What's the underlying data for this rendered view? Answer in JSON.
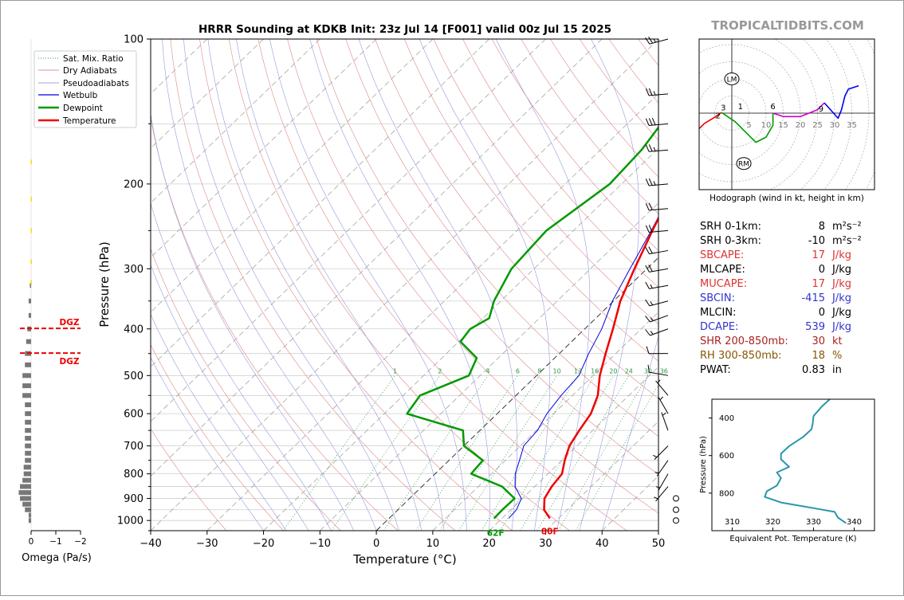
{
  "title": "HRRR Sounding at KDKB Init: 23z Jul 14 [F001] valid 00z Jul 15 2025",
  "watermark": "TROPICALTIDBITS.COM",
  "chart_data": {
    "type": "line",
    "skewt": {
      "xlabel": "Temperature (°C)",
      "ylabel": "Pressure (hPa)",
      "xlim": [
        -40,
        50
      ],
      "ylim": [
        1050,
        100
      ],
      "log_y": true,
      "x_ticks": [
        "−40",
        "−30",
        "−20",
        "−10",
        "0",
        "10",
        "20",
        "30",
        "40",
        "50"
      ],
      "y_ticks": [
        "100",
        "200",
        "300",
        "400",
        "500",
        "600",
        "700",
        "800",
        "900",
        "1000"
      ],
      "legend": [
        "Sat. Mix. Ratio",
        "Dry Adiabats",
        "Pseudoadiabats",
        "Wetbulb",
        "Dewpoint",
        "Temperature"
      ],
      "legend_position": "top-left",
      "mixing_ratio_labels": [
        "1",
        "2",
        "4",
        "6",
        "8",
        "10",
        "13",
        "16",
        "20",
        "24",
        "30",
        "36"
      ],
      "series": [
        {
          "name": "Temperature",
          "color": "#ee0000",
          "points": [
            [
              100,
              -0.2
            ],
            [
              130,
              -6.3
            ],
            [
              150,
              -8.4
            ],
            [
              170,
              -10.7
            ],
            [
              200,
              -10.4
            ],
            [
              250,
              -6
            ],
            [
              300,
              -2.2
            ],
            [
              350,
              1.2
            ],
            [
              400,
              5
            ],
            [
              450,
              8.2
            ],
            [
              500,
              11.2
            ],
            [
              550,
              14.5
            ],
            [
              600,
              16.6
            ],
            [
              650,
              17.6
            ],
            [
              700,
              18.7
            ],
            [
              750,
              20.5
            ],
            [
              800,
              22.5
            ],
            [
              850,
              23
            ],
            [
              900,
              23.9
            ],
            [
              950,
              25.9
            ],
            [
              990,
              28.5
            ]
          ]
        },
        {
          "name": "Dewpoint",
          "color": "#009900",
          "points": [
            [
              100,
              -16.3
            ],
            [
              130,
              -26
            ],
            [
              150,
              -24
            ],
            [
              170,
              -22.7
            ],
            [
              200,
              -22.1
            ],
            [
              250,
              -24.8
            ],
            [
              300,
              -24
            ],
            [
              350,
              -21.2
            ],
            [
              380,
              -18.9
            ],
            [
              400,
              -20.3
            ],
            [
              425,
              -19.7
            ],
            [
              460,
              -13.8
            ],
            [
              500,
              -12
            ],
            [
              550,
              -17
            ],
            [
              600,
              -16
            ],
            [
              650,
              -3
            ],
            [
              700,
              0
            ],
            [
              750,
              6
            ],
            [
              800,
              6.4
            ],
            [
              850,
              14.2
            ],
            [
              900,
              18.6
            ],
            [
              950,
              18.5
            ],
            [
              990,
              18.6
            ]
          ]
        },
        {
          "name": "Wetbulb",
          "color": "#0000dd",
          "points": [
            [
              200,
              -10.4
            ],
            [
              250,
              -6.2
            ],
            [
              300,
              -3
            ],
            [
              350,
              -0.2
            ],
            [
              400,
              3
            ],
            [
              450,
              5.2
            ],
            [
              500,
              7.5
            ],
            [
              550,
              8
            ],
            [
              600,
              8.8
            ],
            [
              650,
              10.2
            ],
            [
              700,
              10.6
            ],
            [
              750,
              12.5
            ],
            [
              800,
              14.2
            ],
            [
              850,
              16.5
            ],
            [
              900,
              19.8
            ],
            [
              950,
              21
            ],
            [
              990,
              21.2
            ]
          ]
        }
      ],
      "surface_labels": [
        {
          "text": "62F",
          "color": "#009900"
        },
        {
          "text": "80F",
          "color": "#ee0000"
        }
      ]
    },
    "omega": {
      "xlabel": "Omega (Pa/s)",
      "x_ticks": [
        "0",
        "−1",
        "−2"
      ],
      "dgz_labels": [
        "DGZ",
        "DGZ"
      ],
      "dgz_pressures": [
        399,
        449
      ],
      "bars": [
        [
          1000,
          0.02
        ],
        [
          975,
          0.02
        ],
        [
          950,
          0.05
        ],
        [
          925,
          0.07
        ],
        [
          900,
          0.09
        ],
        [
          875,
          0.1
        ],
        [
          850,
          0.09
        ],
        [
          825,
          0.07
        ],
        [
          800,
          0.06
        ],
        [
          775,
          0.06
        ],
        [
          750,
          0.05
        ],
        [
          725,
          0.05
        ],
        [
          700,
          0.05
        ],
        [
          675,
          0.05
        ],
        [
          650,
          0.05
        ],
        [
          625,
          0.05
        ],
        [
          600,
          0.05
        ],
        [
          575,
          0.05
        ],
        [
          550,
          0.07
        ],
        [
          525,
          0.07
        ],
        [
          500,
          0.07
        ],
        [
          475,
          0.05
        ],
        [
          450,
          0.05
        ],
        [
          425,
          0.04
        ],
        [
          400,
          0.03
        ],
        [
          375,
          0.02
        ],
        [
          350,
          0.02
        ],
        [
          325,
          0.01
        ]
      ]
    },
    "wind_barbs": [
      {
        "p": 100,
        "spd": 25,
        "dir": 255
      },
      {
        "p": 130,
        "spd": 25,
        "dir": 265
      },
      {
        "p": 150,
        "spd": 30,
        "dir": 265
      },
      {
        "p": 170,
        "spd": 25,
        "dir": 265
      },
      {
        "p": 200,
        "spd": 25,
        "dir": 265
      },
      {
        "p": 225,
        "spd": 20,
        "dir": 265
      },
      {
        "p": 250,
        "spd": 20,
        "dir": 265
      },
      {
        "p": 275,
        "spd": 20,
        "dir": 260
      },
      {
        "p": 300,
        "spd": 20,
        "dir": 260
      },
      {
        "p": 325,
        "spd": 15,
        "dir": 260
      },
      {
        "p": 350,
        "spd": 15,
        "dir": 255
      },
      {
        "p": 375,
        "spd": 15,
        "dir": 250
      },
      {
        "p": 400,
        "spd": 15,
        "dir": 250
      },
      {
        "p": 450,
        "spd": 10,
        "dir": 270
      },
      {
        "p": 500,
        "spd": 10,
        "dir": 280
      },
      {
        "p": 550,
        "spd": 5,
        "dir": 320
      },
      {
        "p": 600,
        "spd": 5,
        "dir": 330
      },
      {
        "p": 650,
        "spd": 5,
        "dir": 340
      },
      {
        "p": 700,
        "spd": 5,
        "dir": 225
      },
      {
        "p": 750,
        "spd": 5,
        "dir": 215
      },
      {
        "p": 800,
        "spd": 5,
        "dir": 210
      },
      {
        "p": 850,
        "spd": 5,
        "dir": 220
      },
      {
        "p": 900,
        "spd": 0,
        "dir": 0
      },
      {
        "p": 950,
        "spd": 0,
        "dir": 0
      },
      {
        "p": 1000,
        "spd": 0,
        "dir": 0
      }
    ],
    "hodograph": {
      "caption": "Hodograph (wind in kt, height in km)",
      "ring_labels": [
        "5",
        "10",
        "15",
        "20",
        "25",
        "30",
        "35"
      ],
      "height_labels": [
        "1",
        "2",
        "3",
        "6",
        "9"
      ],
      "storm_motion_labels": [
        "LM",
        "RM"
      ],
      "segments": [
        {
          "color": "#ee0000",
          "points": [
            [
              -10,
              -5
            ],
            [
              -8,
              -3
            ],
            [
              -5,
              -1.2
            ],
            [
              -3,
              0.2
            ]
          ]
        },
        {
          "color": "#009900",
          "points": [
            [
              -3,
              0.2
            ],
            [
              1,
              -2.5
            ],
            [
              4,
              -5.5
            ],
            [
              7,
              -8.5
            ],
            [
              10,
              -7
            ],
            [
              12,
              -3.5
            ],
            [
              12,
              0
            ]
          ]
        },
        {
          "color": "#cc00cc",
          "points": [
            [
              12,
              0
            ],
            [
              15,
              -1
            ],
            [
              20,
              -1
            ],
            [
              25,
              1
            ],
            [
              27,
              3
            ]
          ]
        },
        {
          "color": "#0000ee",
          "points": [
            [
              27,
              3
            ],
            [
              31,
              -1.5
            ],
            [
              32,
              1
            ],
            [
              33,
              5
            ],
            [
              34,
              7
            ],
            [
              37,
              8
            ]
          ]
        }
      ]
    },
    "theta_e": {
      "xlabel": "Equivalent Pot. Temperature (K)",
      "ylabel": "Pressure (hPa)",
      "x_ticks": [
        "310",
        "320",
        "330",
        "340"
      ],
      "y_ticks": [
        "400",
        "600",
        "800"
      ],
      "color": "#2a96aa",
      "points": [
        [
          300,
          334
        ],
        [
          340,
          332
        ],
        [
          390,
          330
        ],
        [
          430,
          329.8
        ],
        [
          460,
          329.5
        ],
        [
          500,
          327.5
        ],
        [
          550,
          324
        ],
        [
          590,
          322
        ],
        [
          620,
          322
        ],
        [
          660,
          324
        ],
        [
          690,
          321
        ],
        [
          720,
          322
        ],
        [
          760,
          321
        ],
        [
          790,
          318.5
        ],
        [
          820,
          318
        ],
        [
          850,
          322
        ],
        [
          880,
          330
        ],
        [
          900,
          335.2
        ],
        [
          930,
          336
        ],
        [
          960,
          338
        ]
      ]
    },
    "params": [
      {
        "label": "SRH 0-1km:",
        "value": "8",
        "unit": "m²s⁻²",
        "color": "#000000"
      },
      {
        "label": "SRH 0-3km:",
        "value": "-10",
        "unit": "m²s⁻²",
        "color": "#000000"
      },
      {
        "label": "SBCAPE:",
        "value": "17",
        "unit": "J/kg",
        "color": "#dd3333"
      },
      {
        "label": "MLCAPE:",
        "value": "0",
        "unit": "J/kg",
        "color": "#000000"
      },
      {
        "label": "MUCAPE:",
        "value": "17",
        "unit": "J/kg",
        "color": "#dd3333"
      },
      {
        "label": "SBCIN:",
        "value": "-415",
        "unit": "J/kg",
        "color": "#3333cc"
      },
      {
        "label": "MLCIN:",
        "value": "0",
        "unit": "J/kg",
        "color": "#000000"
      },
      {
        "label": "DCAPE:",
        "value": "539",
        "unit": "J/kg",
        "color": "#3333cc"
      },
      {
        "label": "SHR 200-850mb:",
        "value": "30",
        "unit": "kt",
        "color": "#aa2222"
      },
      {
        "label": "RH 300-850mb:",
        "value": "18",
        "unit": "%",
        "color": "#885500"
      },
      {
        "label": "PWAT:",
        "value": "0.83",
        "unit": "in",
        "color": "#000000"
      }
    ]
  }
}
